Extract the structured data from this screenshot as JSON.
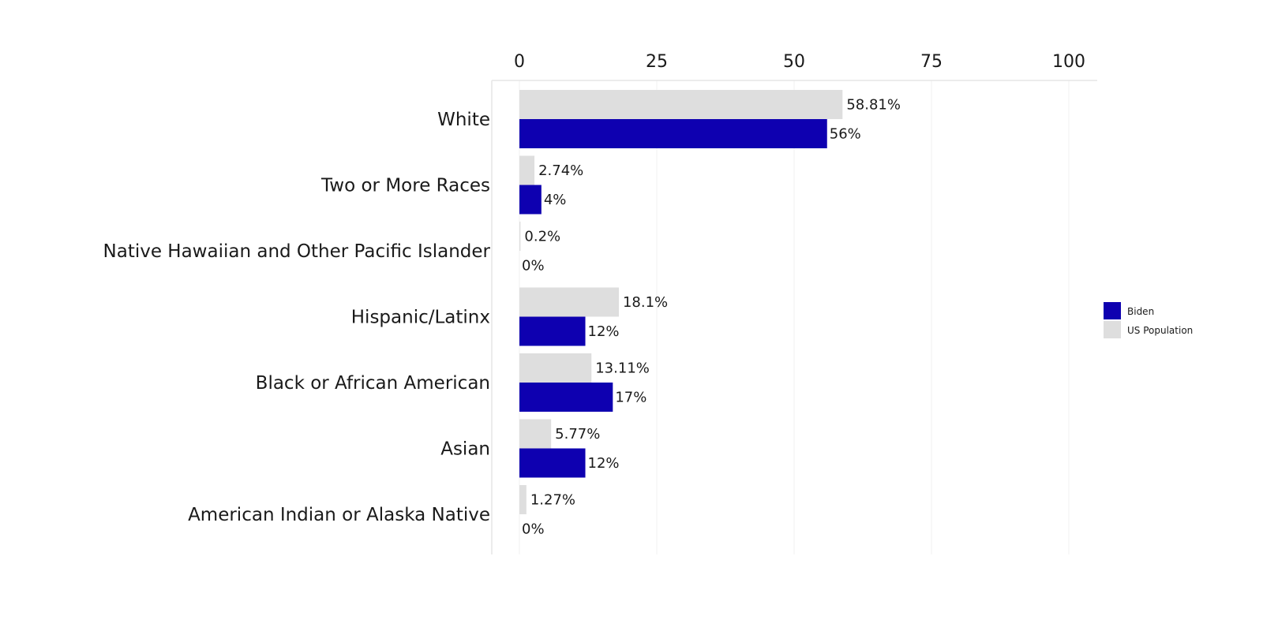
{
  "chart_data": {
    "type": "bar",
    "orientation": "horizontal",
    "categories": [
      "White",
      "Two or More Races",
      "Native Hawaiian and Other Pacific Islander",
      "Hispanic/Latinx",
      "Black or African American",
      "Asian",
      "American Indian or Alaska Native"
    ],
    "series": [
      {
        "name": "US Population",
        "color": "#dedede",
        "values": [
          58.81,
          2.74,
          0.2,
          18.1,
          13.11,
          5.77,
          1.27
        ],
        "labels": [
          "58.81%",
          "2.74%",
          "0.2%",
          "18.1%",
          "13.11%",
          "5.77%",
          "1.27%"
        ]
      },
      {
        "name": "Biden",
        "color": "#0e00b0",
        "values": [
          56,
          4,
          0,
          12,
          17,
          12,
          0
        ],
        "labels": [
          "56%",
          "4%",
          "0%",
          "12%",
          "17%",
          "12%",
          "0%"
        ]
      }
    ],
    "legend_order": [
      "Biden",
      "US Population"
    ],
    "xlim": [
      0,
      100
    ],
    "xticks": [
      0,
      25,
      50,
      75,
      100
    ],
    "xtick_labels": [
      "0",
      "25",
      "50",
      "75",
      "100"
    ],
    "x_axis_position": "top",
    "legend_position": "right",
    "grid": true,
    "title": "",
    "xlabel": "",
    "ylabel": ""
  }
}
